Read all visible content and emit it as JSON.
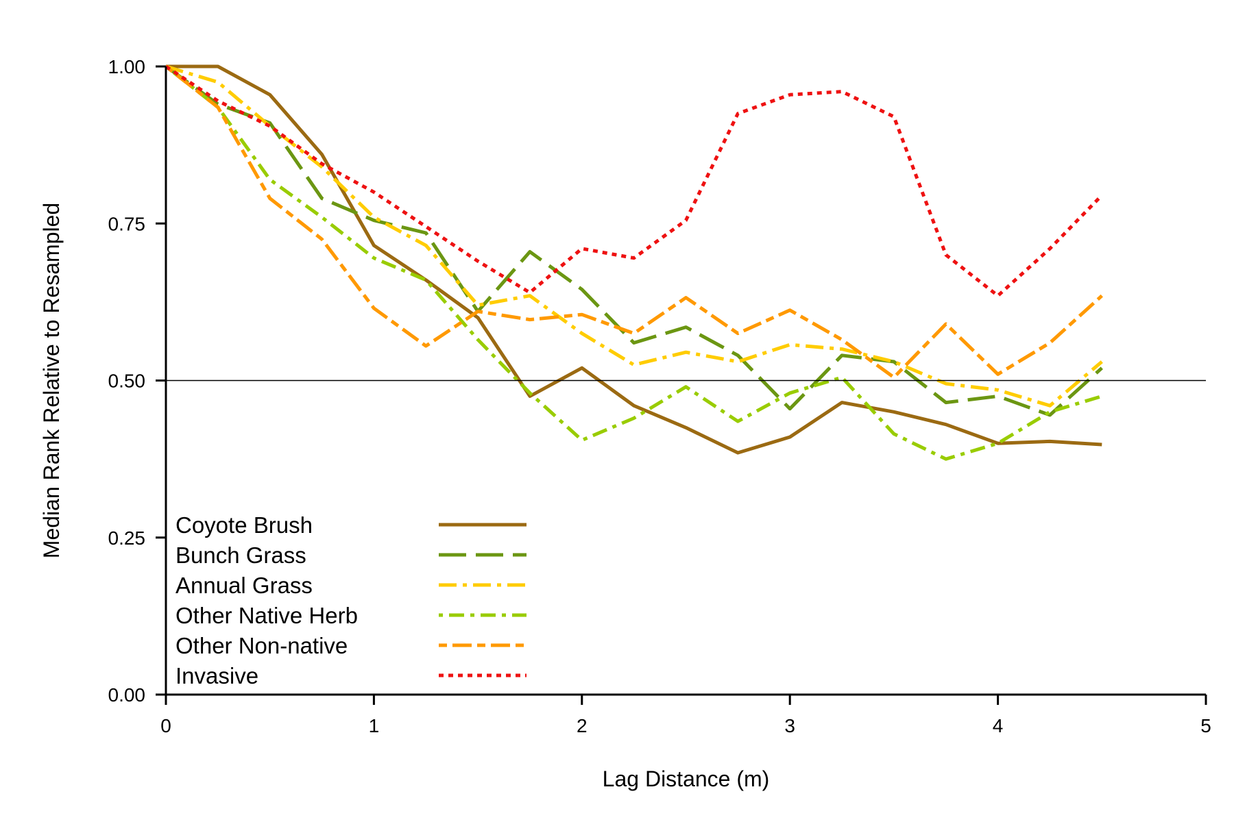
{
  "chart_data": {
    "type": "line",
    "title": "",
    "xlabel": "Lag Distance (m)",
    "ylabel": "Median Rank Relative to Resampled",
    "xlim": [
      0,
      5
    ],
    "ylim": [
      0,
      1
    ],
    "xticks": [
      0,
      1,
      2,
      3,
      4,
      5
    ],
    "xtick_labels": [
      "0",
      "1",
      "2",
      "3",
      "4",
      "5"
    ],
    "yticks": [
      0,
      0.25,
      0.5,
      0.75,
      1.0
    ],
    "ytick_labels": [
      "0.00",
      "0.25",
      "0.50",
      "0.75",
      "1.00"
    ],
    "reference_line": 0.5,
    "grid": false,
    "legend_position": "bottom-left",
    "x": [
      0,
      0.25,
      0.5,
      0.75,
      1.0,
      1.25,
      1.5,
      1.75,
      2.0,
      2.25,
      2.5,
      2.75,
      3.0,
      3.25,
      3.5,
      3.75,
      4.0,
      4.25,
      4.5
    ],
    "series": [
      {
        "name": "Coyote Brush",
        "color": "#9b6a12",
        "dash": "solid",
        "values": [
          1.0,
          1.0,
          0.955,
          0.86,
          0.715,
          0.66,
          0.6,
          0.475,
          0.52,
          0.46,
          0.425,
          0.385,
          0.41,
          0.465,
          0.45,
          0.43,
          0.4,
          0.403,
          0.398
        ]
      },
      {
        "name": "Bunch Grass",
        "color": "#6b9612",
        "dash": "longdash",
        "values": [
          1.0,
          0.94,
          0.91,
          0.79,
          0.755,
          0.735,
          0.61,
          0.705,
          0.645,
          0.56,
          0.585,
          0.54,
          0.455,
          0.54,
          0.53,
          0.465,
          0.475,
          0.445,
          0.52
        ]
      },
      {
        "name": "Annual Grass",
        "color": "#ffcc00",
        "dash": "dashdot",
        "values": [
          1.0,
          0.975,
          0.905,
          0.84,
          0.76,
          0.715,
          0.62,
          0.635,
          0.575,
          0.525,
          0.545,
          0.53,
          0.557,
          0.55,
          0.53,
          0.495,
          0.485,
          0.46,
          0.53
        ]
      },
      {
        "name": "Other Native Herb",
        "color": "#99cc00",
        "dash": "dotdash",
        "values": [
          1.0,
          0.935,
          0.82,
          0.76,
          0.695,
          0.66,
          0.565,
          0.48,
          0.405,
          0.44,
          0.49,
          0.435,
          0.48,
          0.505,
          0.415,
          0.375,
          0.4,
          0.45,
          0.475
        ]
      },
      {
        "name": "Other Non-native",
        "color": "#ff9900",
        "dash": "twodash",
        "values": [
          1.0,
          0.935,
          0.79,
          0.725,
          0.615,
          0.555,
          0.61,
          0.597,
          0.605,
          0.575,
          0.632,
          0.575,
          0.612,
          0.565,
          0.505,
          0.59,
          0.51,
          0.56,
          0.635
        ]
      },
      {
        "name": "Invasive",
        "color": "#ee1111",
        "dash": "dotted",
        "values": [
          1.0,
          0.945,
          0.905,
          0.845,
          0.8,
          0.745,
          0.69,
          0.64,
          0.71,
          0.695,
          0.755,
          0.925,
          0.955,
          0.96,
          0.92,
          0.7,
          0.635,
          0.71,
          0.795
        ]
      }
    ]
  }
}
